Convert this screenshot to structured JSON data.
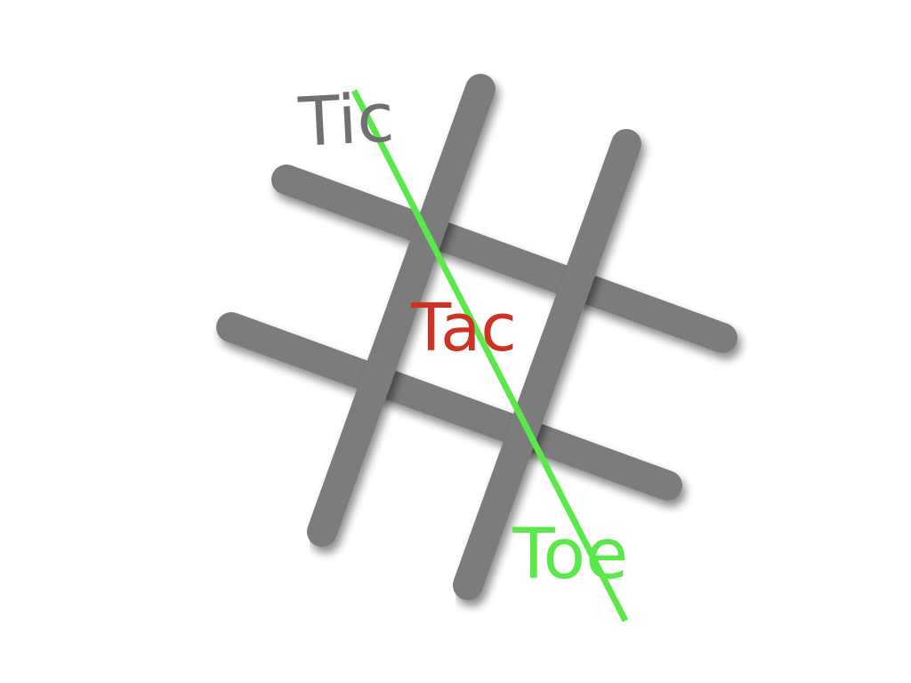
{
  "words": {
    "tic": "Tic",
    "tac": "Tac",
    "toe": "Toe"
  },
  "colors": {
    "background": "#ffffff",
    "grid": "#7b7b7b",
    "tic": "#707070",
    "tac": "#cc3322",
    "toe": "#5ae84a",
    "win_line": "#5ae84a"
  },
  "grid": {
    "rows": 3,
    "cols": 3
  }
}
